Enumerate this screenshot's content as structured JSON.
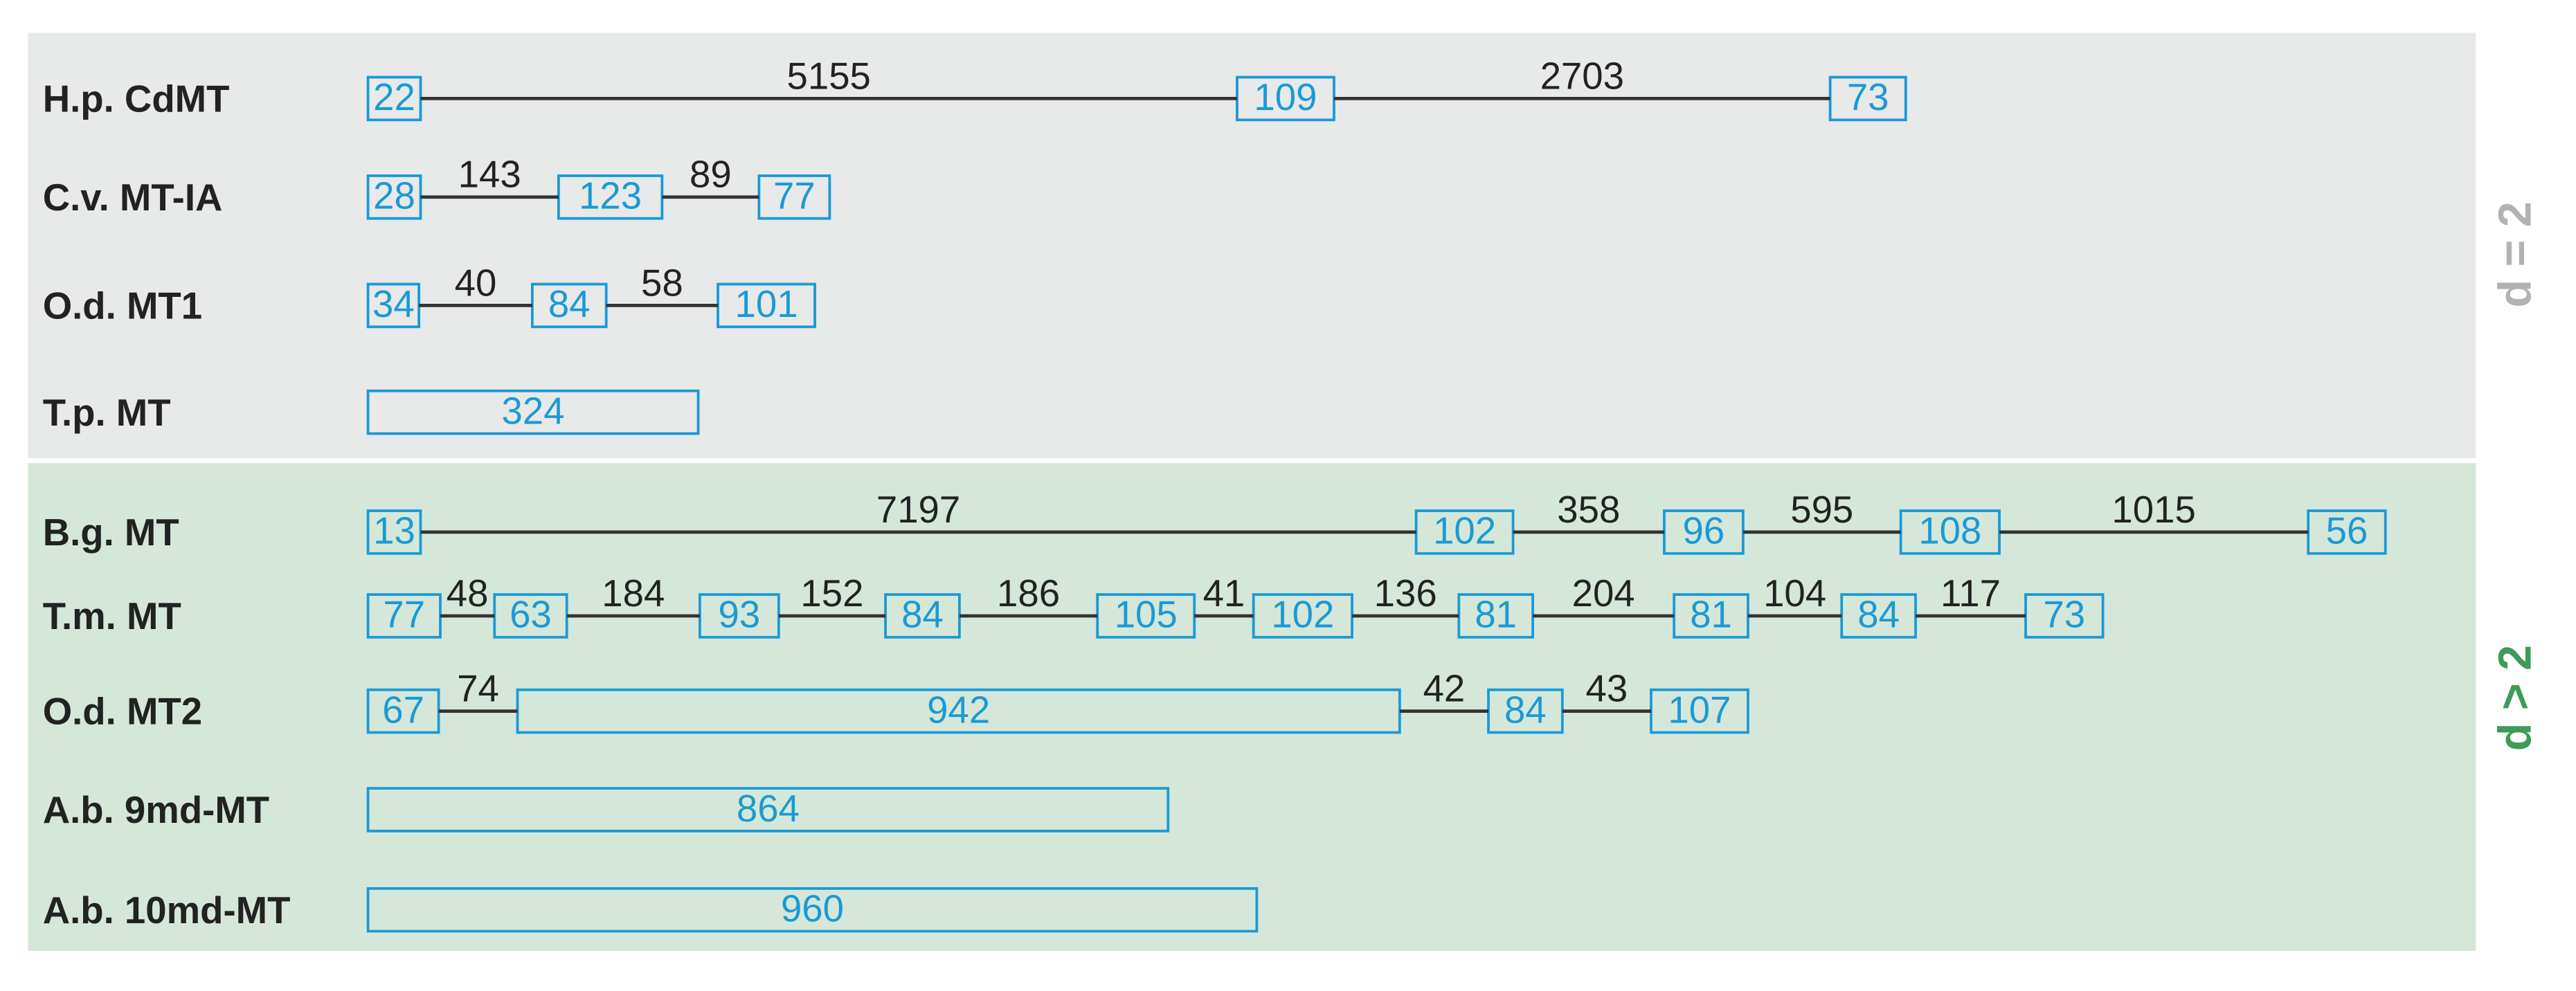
{
  "groups": [
    {
      "label": "d = 2",
      "rows": [
        {
          "name": "H.p.  CdMT",
          "exons": [
            22,
            109,
            73
          ],
          "introns": [
            5155,
            2703
          ]
        },
        {
          "name": "C.v. MT-IA",
          "exons": [
            28,
            123,
            77
          ],
          "introns": [
            143,
            89
          ]
        },
        {
          "name": "O.d. MT1",
          "exons": [
            34,
            84,
            101
          ],
          "introns": [
            40,
            58
          ]
        },
        {
          "name": "T.p. MT",
          "exons": [
            324
          ],
          "introns": []
        }
      ]
    },
    {
      "label": "d > 2",
      "rows": [
        {
          "name": "B.g. MT",
          "exons": [
            13,
            102,
            96,
            108,
            56
          ],
          "introns": [
            7197,
            358,
            595,
            1015
          ]
        },
        {
          "name": "T.m. MT",
          "exons": [
            77,
            63,
            93,
            84,
            105,
            102,
            81,
            81,
            84,
            73
          ],
          "introns": [
            48,
            184,
            152,
            186,
            41,
            136,
            204,
            104,
            117
          ]
        },
        {
          "name": "O.d. MT2",
          "exons": [
            67,
            942,
            84,
            107
          ],
          "introns": [
            74,
            42,
            43
          ]
        },
        {
          "name": "A.b. 9md-MT",
          "exons": [
            864
          ],
          "introns": []
        },
        {
          "name": "A.b. 10md-MT",
          "exons": [
            960
          ],
          "introns": []
        }
      ]
    }
  ]
}
